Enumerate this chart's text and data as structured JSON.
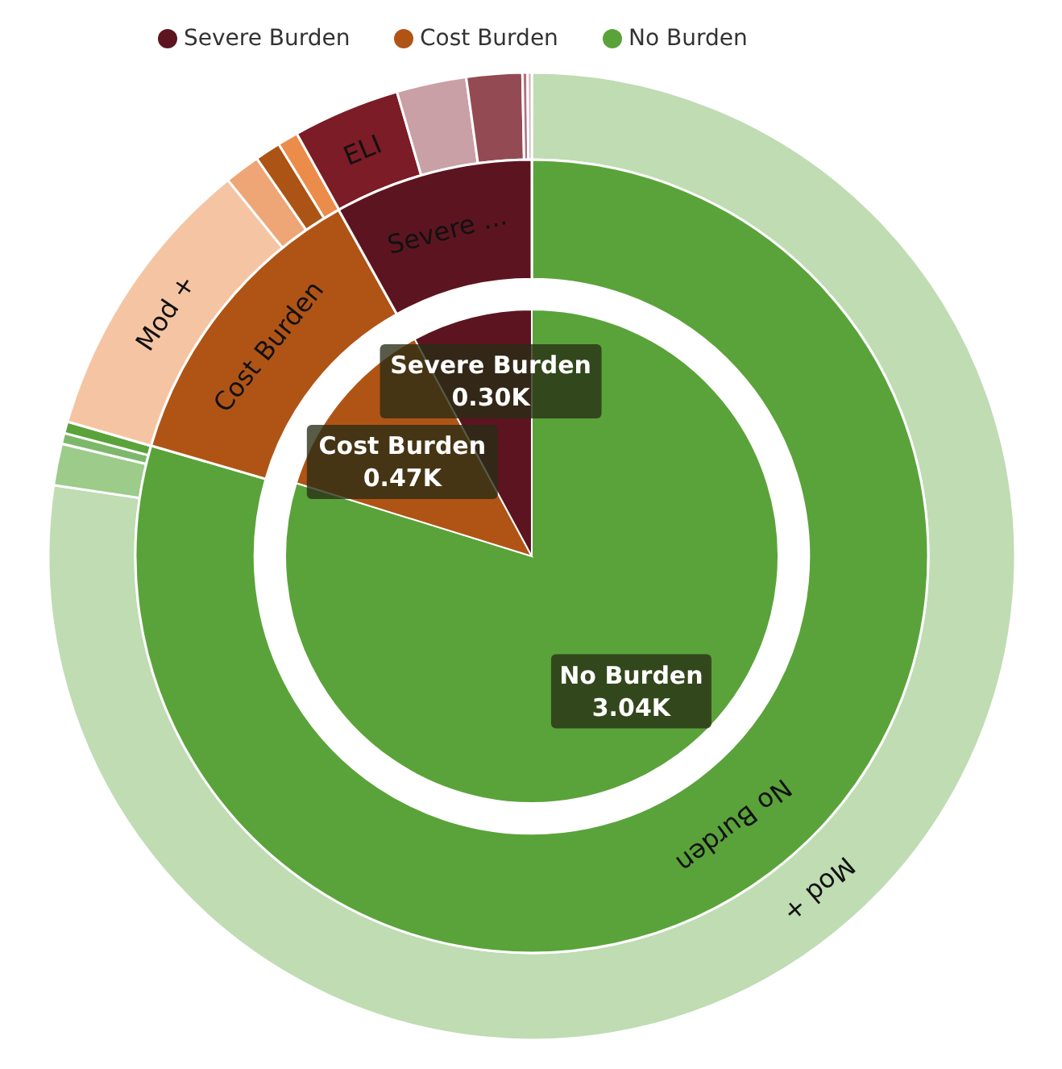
{
  "chart_data": [
    {
      "type": "pie",
      "categories": [
        "No Burden",
        "Cost Burden",
        "Severe Burden"
      ],
      "values": [
        3.04,
        0.47,
        0.3
      ],
      "value_labels": [
        "3.04K",
        "0.47K",
        "0.30K"
      ],
      "colors": [
        "#5aa33a",
        "#b05416",
        "#5c1520"
      ],
      "legend": "top"
    },
    {
      "type": "donut",
      "categories": [
        "No Burden",
        "Cost Burden",
        "Severe ..."
      ],
      "values": [
        79.5,
        12.4,
        8.1
      ],
      "colors": [
        "#5aa33a",
        "#b05416",
        "#5c1520"
      ]
    },
    {
      "type": "donut",
      "categories": [
        "Mod +",
        null,
        null,
        null,
        "Mod +",
        null,
        null,
        null,
        "ELI",
        null,
        null,
        null,
        null
      ],
      "values": [
        77.35,
        1.39,
        0.36,
        0.39,
        9.69,
        1.19,
        0.86,
        0.69,
        3.58,
        2.33,
        1.86,
        0.17,
        0.14
      ],
      "colors": [
        "#bfdcb3",
        "#9ccb8a",
        "#7db86a",
        "#5aa33a",
        "#f5c5a3",
        "#eea676",
        "#ac5415",
        "#eb8c4b",
        "#7b1c26",
        "#c9a0a6",
        "#944a52",
        "#b07080",
        "#d4b0b8"
      ]
    }
  ]
}
